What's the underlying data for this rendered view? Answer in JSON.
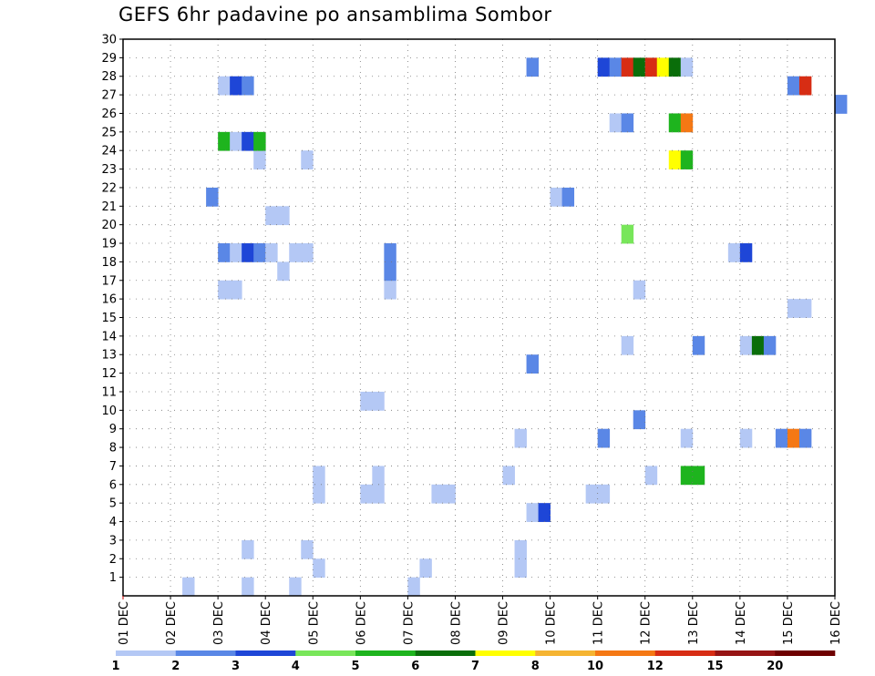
{
  "chart_data": {
    "type": "heatmap",
    "title": "GEFS 6hr padavine po ansamblima Sombor",
    "xlabel": "",
    "ylabel": "",
    "x_ticks": [
      "01 DEC",
      "02 DEC",
      "03 DEC",
      "04 DEC",
      "05 DEC",
      "06 DEC",
      "07 DEC",
      "08 DEC",
      "09 DEC",
      "10 DEC",
      "11 DEC",
      "12 DEC",
      "13 DEC",
      "14 DEC",
      "15 DEC",
      "16 DEC"
    ],
    "y_ticks": [
      "1",
      "2",
      "3",
      "4",
      "5",
      "6",
      "7",
      "8",
      "9",
      "10",
      "11",
      "12",
      "13",
      "14",
      "15",
      "16",
      "17",
      "18",
      "19",
      "20",
      "21",
      "22",
      "23",
      "24",
      "25",
      "26",
      "27",
      "28",
      "29",
      "30"
    ],
    "xlim": [
      "01 DEC 00Z",
      "16 DEC 00Z"
    ],
    "ylim": [
      0,
      30
    ],
    "grid": true,
    "colorbar": {
      "labels": [
        "1",
        "2",
        "3",
        "4",
        "5",
        "6",
        "7",
        "8",
        "10",
        "12",
        "15",
        "20"
      ],
      "colors": [
        "#b4c8f5",
        "#5a87e6",
        "#1e46d7",
        "#78e65a",
        "#1eb41e",
        "#0a6e0a",
        "#ffff00",
        "#f5b432",
        "#f57814",
        "#d72d14",
        "#961414",
        "#6e0000"
      ]
    },
    "units": "6h precipitation (mm)",
    "cells_note": "value = colorbar class index (0 = 1-2, 1 = 2-3, 2 = 3-4, 3 = 4-5, 4 = 5-6, 5 = 6-7, 6 = 7-8, 7 = 8-10, 8 = 10-12, 9 = 12-15, 10 = 15-20, 11 = >20)",
    "series": [
      {
        "member": 0,
        "cells": [
          [
            5,
            0
          ],
          [
            10,
            0
          ],
          [
            14,
            0
          ],
          [
            24,
            0
          ]
        ]
      },
      {
        "member": 1,
        "cells": [
          [
            16,
            0
          ],
          [
            25,
            0
          ],
          [
            33,
            0
          ]
        ]
      },
      {
        "member": 2,
        "cells": [
          [
            10,
            0
          ],
          [
            15,
            0
          ],
          [
            33,
            0
          ]
        ]
      },
      {
        "member": 4,
        "cells": [
          [
            34,
            0
          ],
          [
            35,
            2
          ]
        ]
      },
      {
        "member": 5,
        "cells": [
          [
            16,
            0
          ],
          [
            20,
            0
          ],
          [
            21,
            0
          ],
          [
            26,
            0
          ],
          [
            27,
            0
          ],
          [
            39,
            0
          ],
          [
            40,
            0
          ]
        ]
      },
      {
        "member": 6,
        "cells": [
          [
            16,
            0
          ],
          [
            21,
            0
          ],
          [
            32,
            0
          ],
          [
            44,
            0
          ],
          [
            47,
            4
          ],
          [
            48,
            4
          ]
        ]
      },
      {
        "member": 8,
        "cells": [
          [
            33,
            0
          ],
          [
            40,
            1
          ],
          [
            47,
            0
          ],
          [
            52,
            0
          ],
          [
            55,
            1
          ],
          [
            56,
            8
          ],
          [
            57,
            1
          ]
        ]
      },
      {
        "member": 9,
        "cells": [
          [
            43,
            1
          ]
        ]
      },
      {
        "member": 10,
        "cells": [
          [
            20,
            0
          ],
          [
            21,
            0
          ]
        ]
      },
      {
        "member": 12,
        "cells": [
          [
            34,
            1
          ]
        ]
      },
      {
        "member": 13,
        "cells": [
          [
            42,
            0
          ],
          [
            48,
            1
          ],
          [
            52,
            0
          ],
          [
            53,
            5
          ],
          [
            54,
            1
          ]
        ]
      },
      {
        "member": 15,
        "cells": [
          [
            56,
            0
          ],
          [
            57,
            0
          ]
        ]
      },
      {
        "member": 16,
        "cells": [
          [
            8,
            0
          ],
          [
            9,
            0
          ],
          [
            22,
            0
          ],
          [
            43,
            0
          ]
        ]
      },
      {
        "member": 17,
        "cells": [
          [
            13,
            0
          ],
          [
            22,
            1
          ]
        ]
      },
      {
        "member": 18,
        "cells": [
          [
            8,
            1
          ],
          [
            9,
            0
          ],
          [
            10,
            2
          ],
          [
            11,
            1
          ],
          [
            12,
            0
          ],
          [
            14,
            0
          ],
          [
            15,
            0
          ],
          [
            22,
            1
          ],
          [
            51,
            0
          ],
          [
            52,
            2
          ]
        ]
      },
      {
        "member": 19,
        "cells": [
          [
            42,
            3
          ]
        ]
      },
      {
        "member": 20,
        "cells": [
          [
            12,
            0
          ],
          [
            13,
            0
          ]
        ]
      },
      {
        "member": 21,
        "cells": [
          [
            7,
            1
          ],
          [
            36,
            0
          ],
          [
            37,
            1
          ]
        ]
      },
      {
        "member": 23,
        "cells": [
          [
            11,
            0
          ],
          [
            15,
            0
          ],
          [
            46,
            6
          ],
          [
            47,
            4
          ]
        ]
      },
      {
        "member": 24,
        "cells": [
          [
            8,
            4
          ],
          [
            9,
            0
          ],
          [
            10,
            2
          ],
          [
            11,
            4
          ]
        ]
      },
      {
        "member": 25,
        "cells": [
          [
            41,
            0
          ],
          [
            42,
            1
          ],
          [
            46,
            4
          ],
          [
            47,
            8
          ]
        ]
      },
      {
        "member": 26,
        "cells": [
          [
            60,
            1
          ]
        ]
      },
      {
        "member": 27,
        "cells": [
          [
            8,
            0
          ],
          [
            9,
            2
          ],
          [
            10,
            1
          ],
          [
            56,
            1
          ],
          [
            57,
            9
          ]
        ]
      },
      {
        "member": 28,
        "cells": [
          [
            34,
            1
          ],
          [
            40,
            2
          ],
          [
            41,
            1
          ],
          [
            42,
            9
          ],
          [
            43,
            5
          ],
          [
            44,
            9
          ],
          [
            45,
            6
          ],
          [
            46,
            5
          ],
          [
            47,
            0
          ]
        ]
      }
    ]
  }
}
